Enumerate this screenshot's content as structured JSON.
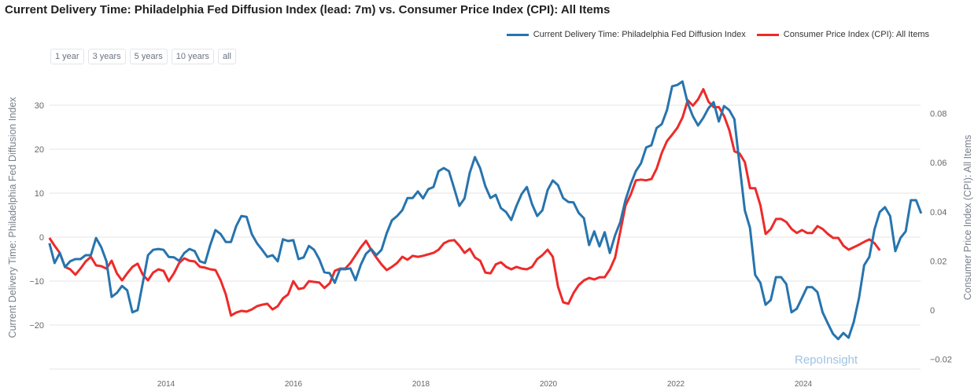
{
  "chart_data": {
    "type": "line",
    "title": "Current Delivery Time: Philadelphia Fed Diffusion Index (lead: 7m) vs. Consumer Price Index (CPI): All Items",
    "ylabel_left": "Current Delivery Time: Philadelphia Fed Diffusion Index",
    "ylabel_right": "Consumer Price Index (CPI): All Items",
    "ylim_left": [
      -30,
      37
    ],
    "ylim_right": [
      -0.025,
      0.09
    ],
    "left_ticks": [
      "30",
      "20",
      "10",
      "0",
      "−10",
      "−20"
    ],
    "left_tick_values": [
      30,
      20,
      10,
      0,
      -10,
      -20
    ],
    "right_ticks": [
      "0.08",
      "0.06",
      "0.04",
      "0.02",
      "0",
      "−0.02"
    ],
    "right_tick_values": [
      0.08,
      0.06,
      0.04,
      0.02,
      0,
      -0.02
    ],
    "x_ticks": [
      "2014",
      "2016",
      "2018",
      "2020",
      "2022",
      "2024"
    ],
    "x_tick_values": [
      2014,
      2016,
      2018,
      2020,
      2022,
      2024
    ],
    "grid": true,
    "legend_position": "top-right",
    "series": [
      {
        "name": "Current Delivery Time: Philadelphia Fed Diffusion Index",
        "axis": "left",
        "color": "#2774ae",
        "x_start": 2012.17,
        "x_end": 2025.85,
        "values": [
          -1.4,
          -5.9,
          -3.6,
          -6.8,
          -5.5,
          -5.0,
          -5.0,
          -4.1,
          -4.1,
          -0.2,
          -2.3,
          -5.5,
          -13.6,
          -12.7,
          -11.1,
          -12.1,
          -17.1,
          -16.6,
          -10.4,
          -4.1,
          -2.9,
          -2.7,
          -2.9,
          -4.5,
          -4.6,
          -5.4,
          -3.6,
          -2.7,
          -3.2,
          -5.5,
          -5.9,
          -1.8,
          1.6,
          0.7,
          -1.1,
          -1.1,
          2.5,
          4.8,
          4.6,
          0.7,
          -1.4,
          -2.9,
          -4.5,
          -4.1,
          -5.5,
          -0.5,
          -0.9,
          -0.7,
          -5.0,
          -4.6,
          -2.0,
          -2.9,
          -5.0,
          -8.0,
          -8.2,
          -10.4,
          -7.3,
          -7.3,
          -7.1,
          -9.8,
          -6.3,
          -3.8,
          -2.7,
          -4.1,
          -2.9,
          0.9,
          3.8,
          4.8,
          6.1,
          8.9,
          8.9,
          10.4,
          8.8,
          10.9,
          11.4,
          15.0,
          15.7,
          15.0,
          11.1,
          7.1,
          8.8,
          14.6,
          18.2,
          15.7,
          11.6,
          8.9,
          9.6,
          6.6,
          5.7,
          3.9,
          7.1,
          9.8,
          11.4,
          7.5,
          4.8,
          6.1,
          10.7,
          12.9,
          11.8,
          8.9,
          8.0,
          7.9,
          5.5,
          4.3,
          -1.8,
          1.3,
          -2.1,
          1.1,
          -3.6,
          0.4,
          3.4,
          8.4,
          12.0,
          15.0,
          16.8,
          20.4,
          20.9,
          24.8,
          25.7,
          28.9,
          34.3,
          34.6,
          35.4,
          30.5,
          27.5,
          25.4,
          27.1,
          29.3,
          30.7,
          26.3,
          29.8,
          28.9,
          26.8,
          16.4,
          6.1,
          2.1,
          -8.6,
          -10.4,
          -15.4,
          -14.3,
          -9.1,
          -9.1,
          -10.7,
          -17.1,
          -16.3,
          -13.9,
          -11.4,
          -11.4,
          -12.5,
          -17.1,
          -19.6,
          -22.0,
          -23.2,
          -21.8,
          -22.9,
          -19.3,
          -13.9,
          -6.4,
          -4.5,
          1.8,
          5.7,
          6.8,
          4.8,
          -3.2,
          -0.2,
          1.3,
          8.4,
          8.4,
          5.4
        ]
      },
      {
        "name": "Consumer Price Index (CPI): All Items",
        "axis": "right",
        "color": "#ee2a2a",
        "x_start": 2012.17,
        "x_end": 2025.2,
        "values": [
          0.0294,
          0.0262,
          0.0233,
          0.0176,
          0.0166,
          0.0144,
          0.0169,
          0.0198,
          0.0217,
          0.0182,
          0.0179,
          0.0169,
          0.0201,
          0.015,
          0.0121,
          0.015,
          0.0176,
          0.0189,
          0.0144,
          0.0121,
          0.0153,
          0.0166,
          0.016,
          0.0118,
          0.015,
          0.0192,
          0.0211,
          0.0201,
          0.0198,
          0.0176,
          0.0173,
          0.0166,
          0.0163,
          0.0121,
          0.0064,
          -0.0022,
          -0.001,
          -0.0003,
          -0.0006,
          0.0003,
          0.0016,
          0.0022,
          0.0026,
          0.0003,
          0.0016,
          0.0048,
          0.0064,
          0.0118,
          0.0086,
          0.009,
          0.0118,
          0.0115,
          0.0112,
          0.009,
          0.0109,
          0.016,
          0.0169,
          0.0169,
          0.0192,
          0.0224,
          0.0256,
          0.0282,
          0.0246,
          0.0214,
          0.0186,
          0.0163,
          0.0176,
          0.0192,
          0.0217,
          0.0205,
          0.0221,
          0.0217,
          0.0221,
          0.0227,
          0.0233,
          0.0246,
          0.0272,
          0.0282,
          0.0285,
          0.0262,
          0.0233,
          0.025,
          0.0214,
          0.0201,
          0.0153,
          0.015,
          0.0186,
          0.0195,
          0.0176,
          0.0166,
          0.0176,
          0.0169,
          0.0166,
          0.0176,
          0.0208,
          0.0224,
          0.0246,
          0.0217,
          0.0096,
          0.0032,
          0.0026,
          0.007,
          0.0102,
          0.0121,
          0.0131,
          0.0125,
          0.0134,
          0.0134,
          0.0166,
          0.0214,
          0.032,
          0.0426,
          0.047,
          0.0528,
          0.0531,
          0.0528,
          0.0534,
          0.0576,
          0.064,
          0.0688,
          0.0714,
          0.0742,
          0.0784,
          0.0854,
          0.0832,
          0.0858,
          0.0899,
          0.0848,
          0.0826,
          0.0826,
          0.079,
          0.0733,
          0.0646,
          0.0637,
          0.0602,
          0.0496,
          0.0496,
          0.0426,
          0.031,
          0.033,
          0.0371,
          0.0371,
          0.0358,
          0.033,
          0.0314,
          0.0326,
          0.0314,
          0.0314,
          0.0342,
          0.033,
          0.031,
          0.0294,
          0.0294,
          0.0262,
          0.0246,
          0.0256,
          0.0266,
          0.0278,
          0.0288,
          0.0272,
          0.0243
        ]
      }
    ]
  },
  "range_buttons": [
    "1 year",
    "3 years",
    "5 years",
    "10 years",
    "all"
  ],
  "watermark": "RepoInsight"
}
